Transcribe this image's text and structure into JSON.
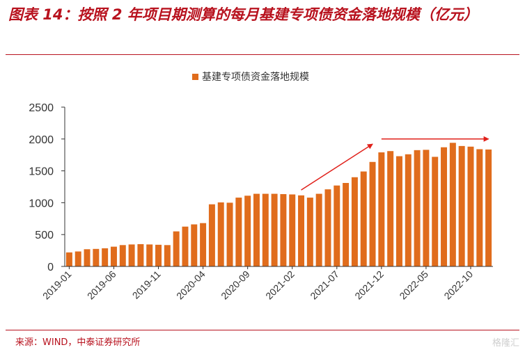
{
  "figure_title": "图表 14：按照 2 年项目期测算的每月基建专项债资金落地规模（亿元）",
  "source": "来源：WIND，中泰证券研究所",
  "watermark": "格隆汇",
  "colors": {
    "bar": "#e06c1c",
    "arrow": "#e0201a",
    "title": "#b8121e"
  },
  "chart_data": {
    "type": "bar",
    "legend": "基建专项债资金落地规模",
    "legend_position": "top-center",
    "grid": false,
    "ylim": [
      0,
      2500
    ],
    "yticks": [
      0,
      500,
      1000,
      1500,
      2000,
      2500
    ],
    "x_tick_labels": [
      "2019-01",
      "2019-06",
      "2019-11",
      "2020-04",
      "2020-09",
      "2021-02",
      "2021-07",
      "2021-12",
      "2022-05",
      "2022-10"
    ],
    "categories": [
      "2019-01",
      "2019-02",
      "2019-03",
      "2019-04",
      "2019-05",
      "2019-06",
      "2019-07",
      "2019-08",
      "2019-09",
      "2019-10",
      "2019-11",
      "2019-12",
      "2020-01",
      "2020-02",
      "2020-03",
      "2020-04",
      "2020-05",
      "2020-06",
      "2020-07",
      "2020-08",
      "2020-09",
      "2020-10",
      "2020-11",
      "2020-12",
      "2021-01",
      "2021-02",
      "2021-03",
      "2021-04",
      "2021-05",
      "2021-06",
      "2021-07",
      "2021-08",
      "2021-09",
      "2021-10",
      "2021-11",
      "2021-12",
      "2022-01",
      "2022-02",
      "2022-03",
      "2022-04",
      "2022-05",
      "2022-06",
      "2022-07",
      "2022-08",
      "2022-09",
      "2022-10",
      "2022-11",
      "2022-12"
    ],
    "values": [
      220,
      235,
      270,
      275,
      285,
      310,
      335,
      345,
      350,
      345,
      340,
      335,
      550,
      625,
      660,
      680,
      975,
      1005,
      1000,
      1080,
      1110,
      1140,
      1140,
      1140,
      1135,
      1130,
      1115,
      1080,
      1140,
      1210,
      1270,
      1310,
      1400,
      1490,
      1640,
      1790,
      1810,
      1730,
      1760,
      1825,
      1830,
      1720,
      1870,
      1940,
      1890,
      1880,
      1840,
      1835
    ],
    "annotations": [
      {
        "type": "arrow",
        "from": [
          "2021-03",
          1200
        ],
        "to": [
          "2021-11",
          1920
        ]
      },
      {
        "type": "arrow",
        "from": [
          "2021-12",
          2000
        ],
        "to": [
          "2022-12",
          2000
        ]
      }
    ]
  }
}
